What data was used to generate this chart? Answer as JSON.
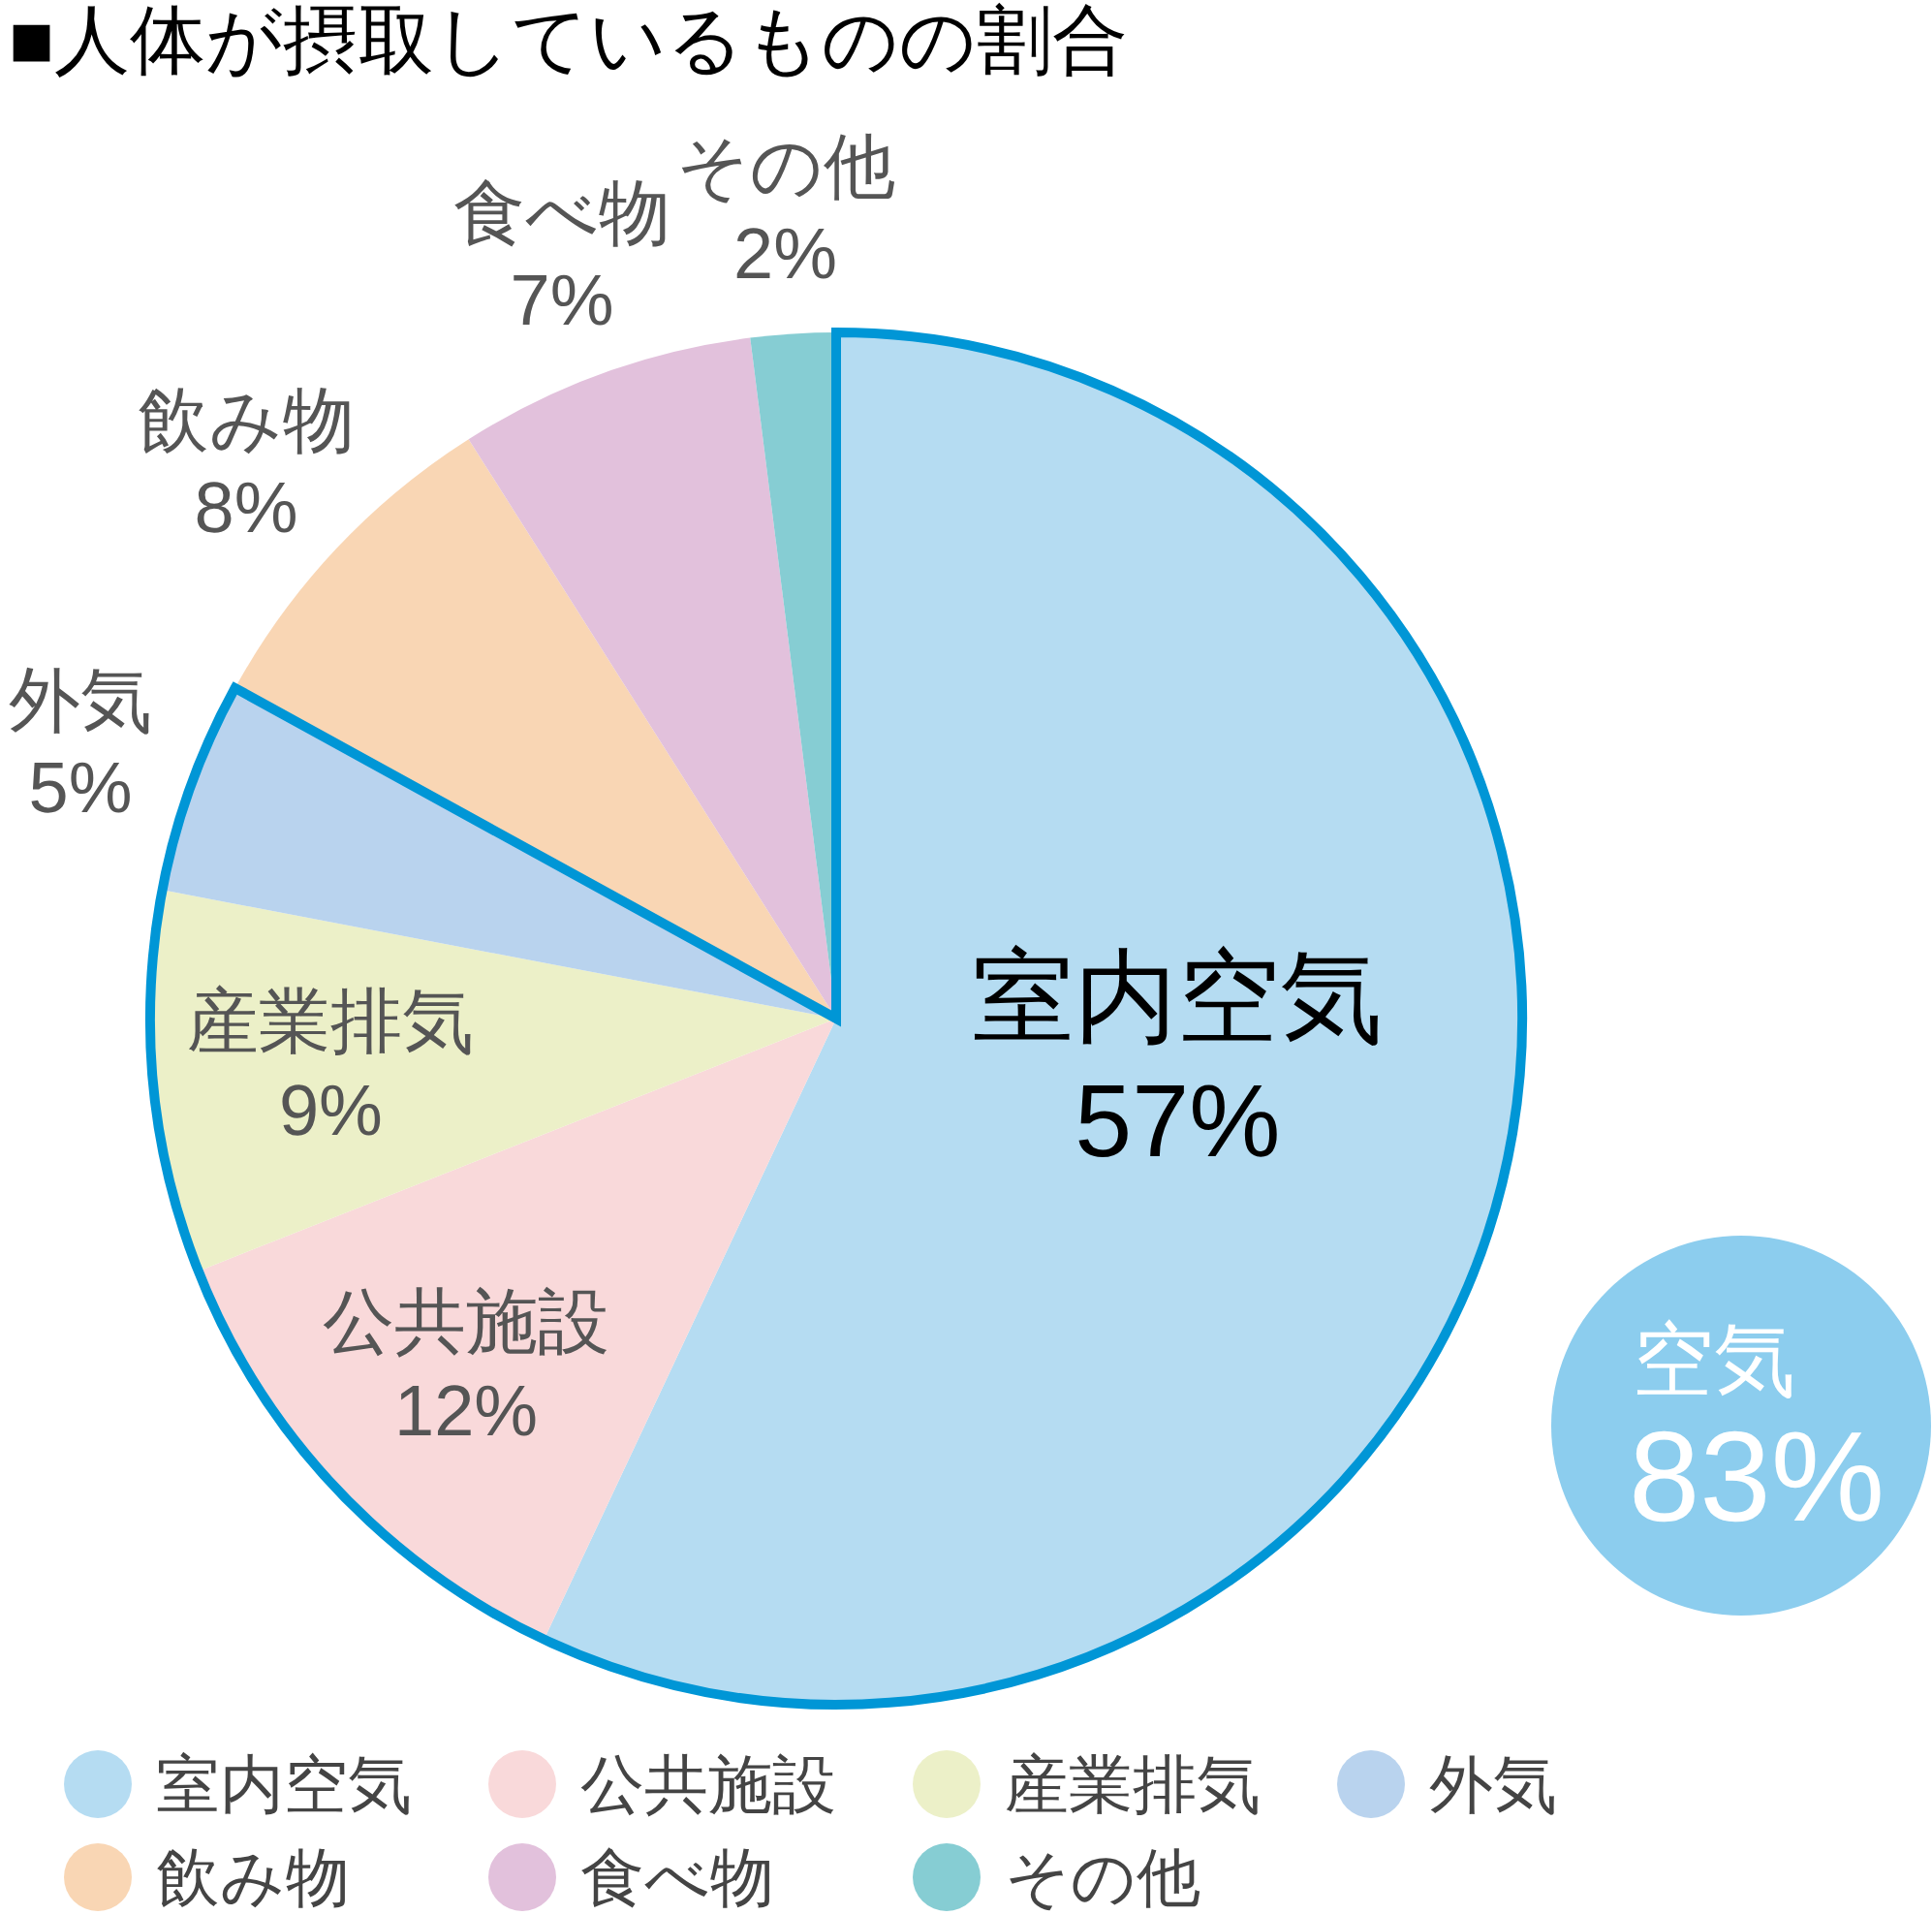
{
  "chart_data": {
    "type": "pie",
    "title": "■人体が摂取しているものの割合",
    "categories": [
      "室内空気",
      "公共施設",
      "産業排気",
      "外気",
      "飲み物",
      "食べ物",
      "その他"
    ],
    "values": [
      57,
      12,
      9,
      5,
      8,
      7,
      2
    ],
    "value_labels": [
      "57%",
      "12%",
      "9%",
      "5%",
      "8%",
      "7%",
      "2%"
    ],
    "colors": [
      "#b5dcf2",
      "#f9d9da",
      "#ecf0c8",
      "#b9d3ee",
      "#f9d6b4",
      "#e2c1dc",
      "#86cdd3"
    ],
    "bands": [
      {
        "axis": "x",
        "from": "室内空気",
        "to": "外気",
        "label": "空気\n83%",
        "color": "#0096d6"
      }
    ],
    "legend": "bottom"
  }
}
